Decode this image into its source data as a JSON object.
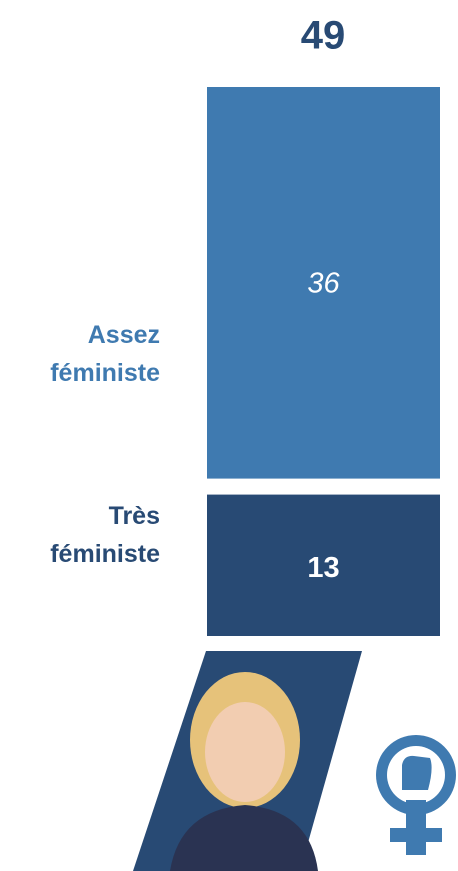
{
  "chart_data": {
    "type": "stacked-bar",
    "total": 49,
    "series": [
      {
        "name": "Très féministe",
        "color": "#284a74",
        "values": [
          13
        ]
      },
      {
        "name": "Assez féministe",
        "color": "#3f7ab0",
        "values": [
          36
        ]
      }
    ]
  }
}
